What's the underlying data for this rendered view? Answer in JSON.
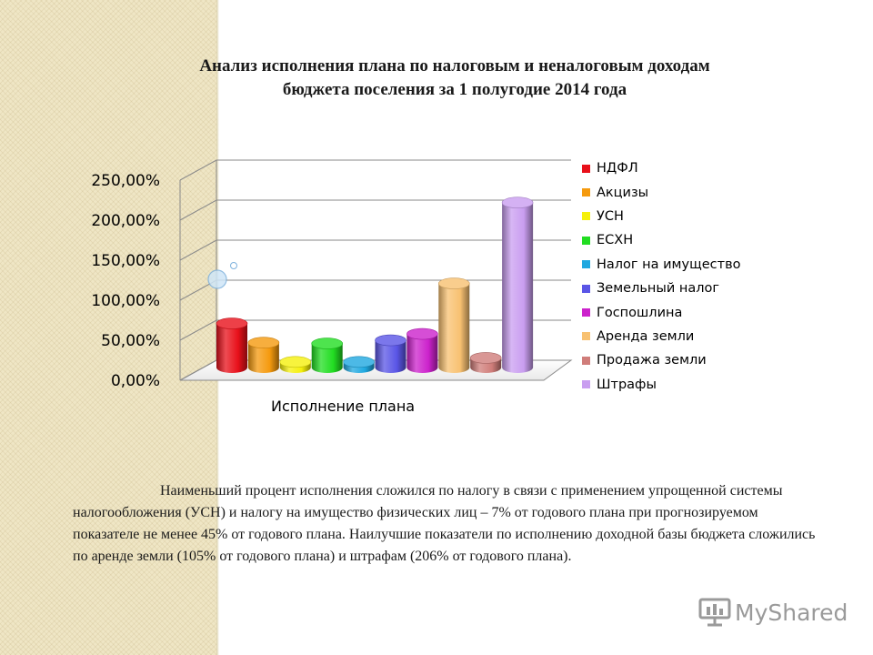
{
  "slide": {
    "title_line1": "Анализ исполнения плана по налоговым и неналоговым доходам",
    "title_line2": "бюджета поселения  за 1 полугодие 2014 года",
    "body_text": "Наименьший процент исполнения сложился по налогу в связи с применением упрощенной системы налогообложения (УСН) и налогу на имущество физических лиц – 7% от годового плана при прогнозируемом показателе не менее 45% от годового плана. Наилучшие показатели по исполнению доходной базы бюджета сложились по аренде земли (105% от годового плана) и штрафам (206% от годового плана).",
    "brand": "MyShared",
    "brand_icon": "presentation-board-icon"
  },
  "chart_data": {
    "type": "bar",
    "xlabel": "Исполнение плана",
    "ylabel": "",
    "ylim": [
      0,
      250
    ],
    "y_ticks": [
      "0,00%",
      "50,00%",
      "100,00%",
      "150,00%",
      "200,00%",
      "250,00%"
    ],
    "grid": true,
    "legend_position": "right",
    "categories": [
      "Исполнение плана"
    ],
    "series": [
      {
        "name": "НДФЛ",
        "color": "#e8101a",
        "value": 55
      },
      {
        "name": "Акцизы",
        "color": "#f59a0e",
        "value": 31
      },
      {
        "name": "УСН",
        "color": "#f5f00c",
        "value": 7
      },
      {
        "name": "ЕСХН",
        "color": "#22dd22",
        "value": 30
      },
      {
        "name": "Налог на имущество",
        "color": "#1fa8e0",
        "value": 7
      },
      {
        "name": "Земельный налог",
        "color": "#5a55e6",
        "value": 34
      },
      {
        "name": "Госпошлина",
        "color": "#cc22cc",
        "value": 42
      },
      {
        "name": "Аренда земли",
        "color": "#f8c171",
        "value": 105
      },
      {
        "name": "Продажа земли",
        "color": "#d07d7a",
        "value": 12
      },
      {
        "name": "Штрафы",
        "color": "#c99ef0",
        "value": 206
      }
    ]
  }
}
